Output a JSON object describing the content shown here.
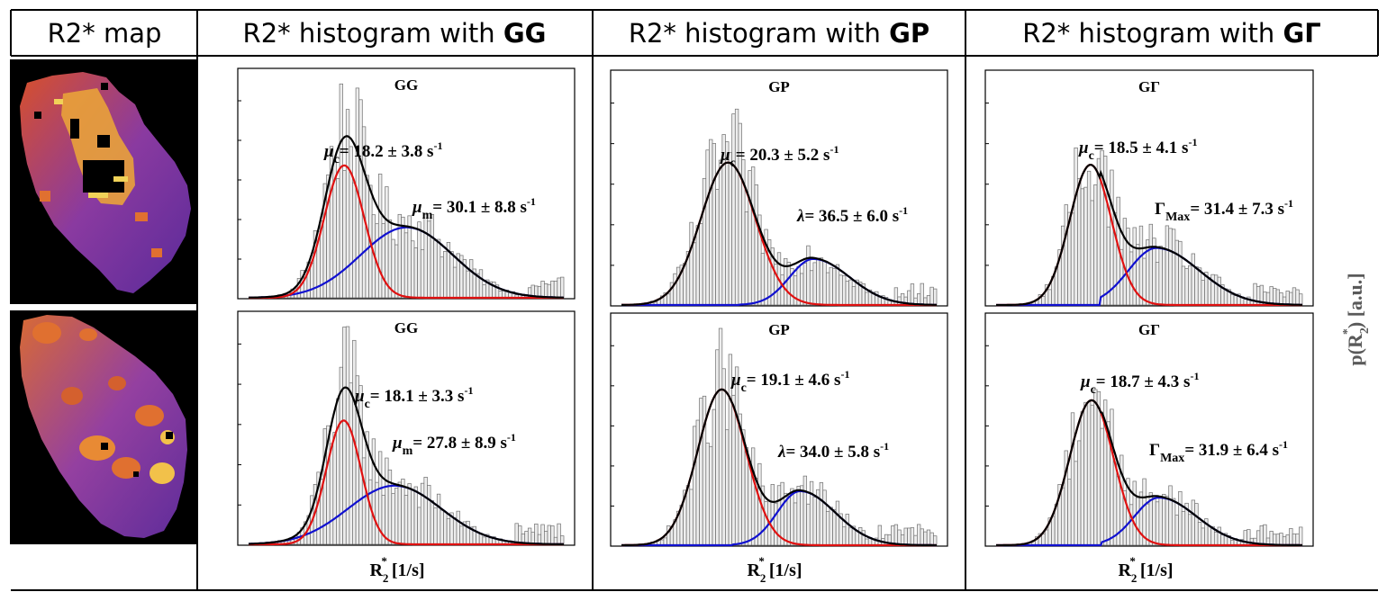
{
  "headers": {
    "map": "R2* map",
    "gg_prefix": "R2* histogram with ",
    "gg_bold": "GG",
    "gp_prefix": "R2* histogram with ",
    "gp_bold": "GP",
    "gg2_prefix": "R2* histogram with ",
    "gg2_bold": "GΓ"
  },
  "colors": {
    "component1": "#e01010",
    "component2": "#1010d0",
    "total": "#000000",
    "bars": "#ededed"
  },
  "y_label": {
    "base": "p(R",
    "sub": "2",
    "sup": "*",
    "tail": ") [a.u.]"
  },
  "x_label": {
    "base": "R",
    "sub": "2",
    "sup": "*",
    "tail": " [1/s]"
  },
  "chart_data": [
    {
      "id": "gg-top",
      "type": "histogram",
      "title": "GG",
      "model": "Gaussian+Gaussian",
      "xlim": [
        0,
        60
      ],
      "component1": {
        "type": "gaussian",
        "center": 18.2,
        "sd": 3.8,
        "amplitude": 0.62
      },
      "component2": {
        "type": "gaussian",
        "center": 30.1,
        "sd": 8.8,
        "amplitude": 0.33
      },
      "annotations": [
        {
          "sym": "μ",
          "sub": "c",
          "text": "= 18.2 ± 3.8 s",
          "sup": "-1"
        },
        {
          "sym": "μ",
          "sub": "m",
          "text": "= 30.1 ± 8.8 s",
          "sup": "-1"
        }
      ],
      "x_label": false
    },
    {
      "id": "gg-bottom",
      "type": "histogram",
      "title": "GG",
      "model": "Gaussian+Gaussian",
      "xlim": [
        0,
        60
      ],
      "component1": {
        "type": "gaussian",
        "center": 18.1,
        "sd": 3.3,
        "amplitude": 0.57
      },
      "component2": {
        "type": "gaussian",
        "center": 27.8,
        "sd": 8.9,
        "amplitude": 0.27
      },
      "annotations": [
        {
          "sym": "μ",
          "sub": "c",
          "text": "= 18.1 ± 3.3 s",
          "sup": "-1"
        },
        {
          "sym": "μ",
          "sub": "m",
          "text": "= 27.8 ± 8.9 s",
          "sup": "-1"
        }
      ],
      "x_label": true
    },
    {
      "id": "gp-top",
      "type": "histogram",
      "title": "GP",
      "model": "Gaussian+Poisson",
      "xlim": [
        0,
        60
      ],
      "component1": {
        "type": "gaussian",
        "center": 20.3,
        "sd": 5.2,
        "amplitude": 0.65
      },
      "component2": {
        "type": "poisson",
        "center": 36.5,
        "sd": 6.0,
        "amplitude": 0.21
      },
      "annotations": [
        {
          "sym": "μ",
          "sub": "c",
          "text": "= 20.3 ± 5.2 s",
          "sup": "-1"
        },
        {
          "sym": "λ",
          "sub": "",
          "text": "= 36.5 ± 6.0 s",
          "sup": "-1"
        }
      ],
      "x_label": false
    },
    {
      "id": "gp-bottom",
      "type": "histogram",
      "title": "GP",
      "model": "Gaussian+Poisson",
      "xlim": [
        0,
        60
      ],
      "component1": {
        "type": "gaussian",
        "center": 19.1,
        "sd": 4.6,
        "amplitude": 0.72
      },
      "component2": {
        "type": "poisson",
        "center": 34.0,
        "sd": 5.8,
        "amplitude": 0.25
      },
      "annotations": [
        {
          "sym": "μ",
          "sub": "c",
          "text": "= 19.1 ± 4.6 s",
          "sup": "-1"
        },
        {
          "sym": "λ",
          "sub": "",
          "text": "= 34.0 ± 5.8 s",
          "sup": "-1"
        }
      ],
      "x_label": true
    },
    {
      "id": "gg2-top",
      "type": "histogram",
      "title": "GΓ",
      "model": "Gaussian+Gamma",
      "xlim": [
        0,
        60
      ],
      "component1": {
        "type": "gaussian",
        "center": 18.5,
        "sd": 4.1,
        "amplitude": 0.64
      },
      "component2": {
        "type": "gamma",
        "center": 31.4,
        "sd": 7.3,
        "amplitude": 0.26
      },
      "annotations": [
        {
          "sym": "μ",
          "sub": "c",
          "text": "= 18.5 ± 4.1 s",
          "sup": "-1"
        },
        {
          "sym": "Γ",
          "sub": "Max",
          "text": "= 31.4 ± 7.3 s",
          "sup": "-1"
        }
      ],
      "x_label": false
    },
    {
      "id": "gg2-bottom",
      "type": "histogram",
      "title": "GΓ",
      "model": "Gaussian+Gamma",
      "xlim": [
        0,
        60
      ],
      "component1": {
        "type": "gaussian",
        "center": 18.7,
        "sd": 4.3,
        "amplitude": 0.67
      },
      "component2": {
        "type": "gamma",
        "center": 31.9,
        "sd": 6.4,
        "amplitude": 0.22
      },
      "annotations": [
        {
          "sym": "μ",
          "sub": "c",
          "text": "= 18.7 ± 4.3 s",
          "sup": "-1"
        },
        {
          "sym": "Γ",
          "sub": "Max",
          "text": "= 31.9 ± 6.4 s",
          "sup": "-1"
        }
      ],
      "x_label": true
    }
  ]
}
